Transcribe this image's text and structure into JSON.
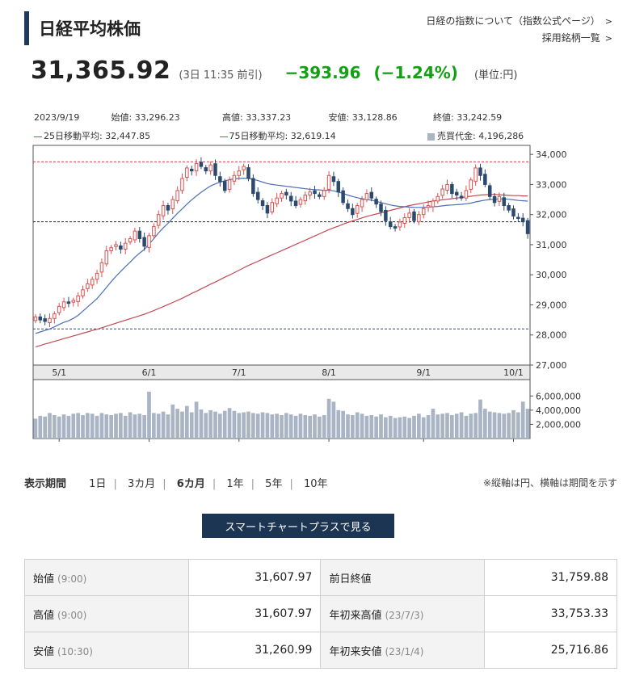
{
  "header": {
    "title": "日経平均株価",
    "links": [
      "日経の指数について（指数公式ページ）",
      "採用銘柄一覧"
    ]
  },
  "quote": {
    "price": "31,365.92",
    "time": "(3日 11:35 前引)",
    "change": "−393.96",
    "change_pct": "(−1.24%)",
    "unit": "(単位:円)"
  },
  "ohlc": {
    "date": "2023/9/19",
    "open": "始値: 33,296.23",
    "high": "高値: 33,337.23",
    "low": "安値: 33,128.86",
    "close": "終値: 33,242.59"
  },
  "legend": {
    "ma25": "25日移動平均: 32,447.85",
    "ma75": "75日移動平均: 32,619.14",
    "volume": "売買代金: 4,196,286"
  },
  "colors": {
    "up": "#e05050",
    "down": "#2c4a6e",
    "ma25": "#4a6fb5",
    "ma75": "#c24a55",
    "volume": "#a9b5c4",
    "change": "#12a112"
  },
  "chart_data": {
    "type": "candlestick",
    "y_ticks": [
      "34,000",
      "33,000",
      "32,000",
      "31,000",
      "30,000",
      "29,000",
      "28,000",
      "27,000"
    ],
    "ylim": [
      27000,
      34300
    ],
    "x_ticks": [
      "5/1",
      "6/1",
      "7/1",
      "8/1",
      "9/1",
      "10/1"
    ],
    "x_tick_index": [
      5,
      24,
      43,
      62,
      82,
      101
    ],
    "volume_ticks": [
      "6,000,000",
      "4,000,000",
      "2,000,000"
    ],
    "volume_ylim": [
      0,
      6600000
    ],
    "reference_lines": [
      {
        "value": 33753.33,
        "style": "dashed",
        "color": "#d04040"
      },
      {
        "value": 31759.88,
        "style": "dashed",
        "color": "#222222"
      },
      {
        "value": 28200,
        "style": "dashed",
        "color": "#2c4a6e"
      }
    ],
    "close": [
      28600,
      28500,
      28450,
      28550,
      28700,
      28950,
      29100,
      29050,
      29150,
      29300,
      29500,
      29700,
      29850,
      30050,
      30400,
      30800,
      30900,
      31000,
      30850,
      31050,
      31200,
      31450,
      31200,
      30950,
      31300,
      31600,
      32000,
      32300,
      32150,
      32500,
      32800,
      33200,
      33550,
      33450,
      33700,
      33600,
      33450,
      33650,
      33300,
      33100,
      32800,
      33150,
      33300,
      33450,
      33600,
      33200,
      32700,
      32500,
      32300,
      32050,
      32400,
      32550,
      32700,
      32650,
      32450,
      32300,
      32500,
      32650,
      32750,
      32700,
      32600,
      32800,
      33300,
      33100,
      32750,
      32400,
      32200,
      32000,
      32300,
      32500,
      32700,
      32550,
      32350,
      32100,
      31800,
      31600,
      31550,
      31750,
      31900,
      32050,
      31800,
      32000,
      32200,
      32300,
      32450,
      32600,
      32850,
      33000,
      32700,
      32650,
      32550,
      32800,
      33150,
      33550,
      33300,
      33000,
      32600,
      32400,
      32600,
      32300,
      32150,
      31950,
      31880,
      31760,
      31366
    ],
    "ma25": [
      28050,
      28100,
      28150,
      28200,
      28270,
      28350,
      28420,
      28470,
      28550,
      28650,
      28790,
      28930,
      29070,
      29210,
      29390,
      29580,
      29770,
      29950,
      30110,
      30270,
      30420,
      30580,
      30720,
      30840,
      31020,
      31200,
      31390,
      31560,
      31710,
      31880,
      32040,
      32190,
      32350,
      32490,
      32620,
      32740,
      32850,
      32950,
      33020,
      33080,
      33120,
      33160,
      33190,
      33200,
      33210,
      33200,
      33170,
      33130,
      33080,
      33030,
      33000,
      32980,
      32960,
      32940,
      32920,
      32900,
      32880,
      32860,
      32840,
      32830,
      32820,
      32800,
      32810,
      32790,
      32750,
      32700,
      32650,
      32600,
      32560,
      32530,
      32500,
      32480,
      32440,
      32400,
      32360,
      32320,
      32290,
      32270,
      32260,
      32250,
      32240,
      32240,
      32240,
      32250,
      32260,
      32270,
      32290,
      32310,
      32320,
      32330,
      32340,
      32360,
      32380,
      32420,
      32450,
      32480,
      32500,
      32510,
      32520,
      32520,
      32510,
      32490,
      32470,
      32460,
      32448
    ],
    "ma75": [
      27600,
      27650,
      27700,
      27740,
      27790,
      27830,
      27880,
      27920,
      27970,
      28010,
      28060,
      28100,
      28150,
      28190,
      28240,
      28290,
      28340,
      28390,
      28440,
      28490,
      28540,
      28590,
      28640,
      28690,
      28750,
      28810,
      28880,
      28940,
      29010,
      29080,
      29150,
      29220,
      29300,
      29380,
      29450,
      29530,
      29610,
      29690,
      29760,
      29840,
      29920,
      29990,
      30070,
      30150,
      30230,
      30310,
      30380,
      30450,
      30520,
      30590,
      30660,
      30730,
      30800,
      30870,
      30940,
      31010,
      31080,
      31150,
      31220,
      31290,
      31360,
      31430,
      31500,
      31560,
      31620,
      31680,
      31740,
      31790,
      31840,
      31890,
      31940,
      31980,
      32020,
      32060,
      32100,
      32140,
      32180,
      32220,
      32260,
      32300,
      32330,
      32360,
      32390,
      32420,
      32450,
      32470,
      32490,
      32510,
      32530,
      32550,
      32570,
      32590,
      32610,
      32630,
      32650,
      32660,
      32670,
      32670,
      32660,
      32650,
      32640,
      32630,
      32630,
      32620,
      32619
    ],
    "volume": [
      2800000,
      3200000,
      3100000,
      3600000,
      3300000,
      3100000,
      3400000,
      3200000,
      3500000,
      3600000,
      3300000,
      3600000,
      3500000,
      3200000,
      3600000,
      3400000,
      3300000,
      3500000,
      3600000,
      3200000,
      3700000,
      3400000,
      3500000,
      3300000,
      6600000,
      3600000,
      3500000,
      3800000,
      3400000,
      4800000,
      4200000,
      3800000,
      4600000,
      3700000,
      5200000,
      4100000,
      3600000,
      4000000,
      3800000,
      3500000,
      3900000,
      4300000,
      3900000,
      3600000,
      3700000,
      3800000,
      3600000,
      3500000,
      3700000,
      3600000,
      3400000,
      3500000,
      3300000,
      3600000,
      3400000,
      3200000,
      3500000,
      3300000,
      3200000,
      3400000,
      3100000,
      3300000,
      5600000,
      5200000,
      4000000,
      3900000,
      3400000,
      3300000,
      3700000,
      3500000,
      3200000,
      3300000,
      3100000,
      3400000,
      3000000,
      3200000,
      2900000,
      3000000,
      3100000,
      2900000,
      3200000,
      3500000,
      3000000,
      3300000,
      4200000,
      3400000,
      3500000,
      3600000,
      3300000,
      3500000,
      3700000,
      3200000,
      3500000,
      3600000,
      5500000,
      4200000,
      3800000,
      3700000,
      3600000,
      3500000,
      3600000,
      4000000,
      3700000,
      5200000,
      4196286
    ]
  },
  "period": {
    "label": "表示期間",
    "options": [
      "1日",
      "3カ月",
      "6カ月",
      "1年",
      "5年",
      "10年"
    ],
    "note": "※縦軸は円、横軸は期間を示す"
  },
  "button_label": "スマートチャートプラスで見る",
  "stats": {
    "rows": [
      {
        "label": "始値",
        "sub": "(9:00)",
        "value": "31,607.97",
        "label2": "前日終値",
        "sub2": "",
        "value2": "31,759.88"
      },
      {
        "label": "高値",
        "sub": "(9:00)",
        "value": "31,607.97",
        "label2": "年初来高値",
        "sub2": "(23/7/3)",
        "value2": "33,753.33"
      },
      {
        "label": "安値",
        "sub": "(10:30)",
        "value": "31,260.99",
        "label2": "年初来安値",
        "sub2": "(23/1/4)",
        "value2": "25,716.86"
      }
    ]
  }
}
